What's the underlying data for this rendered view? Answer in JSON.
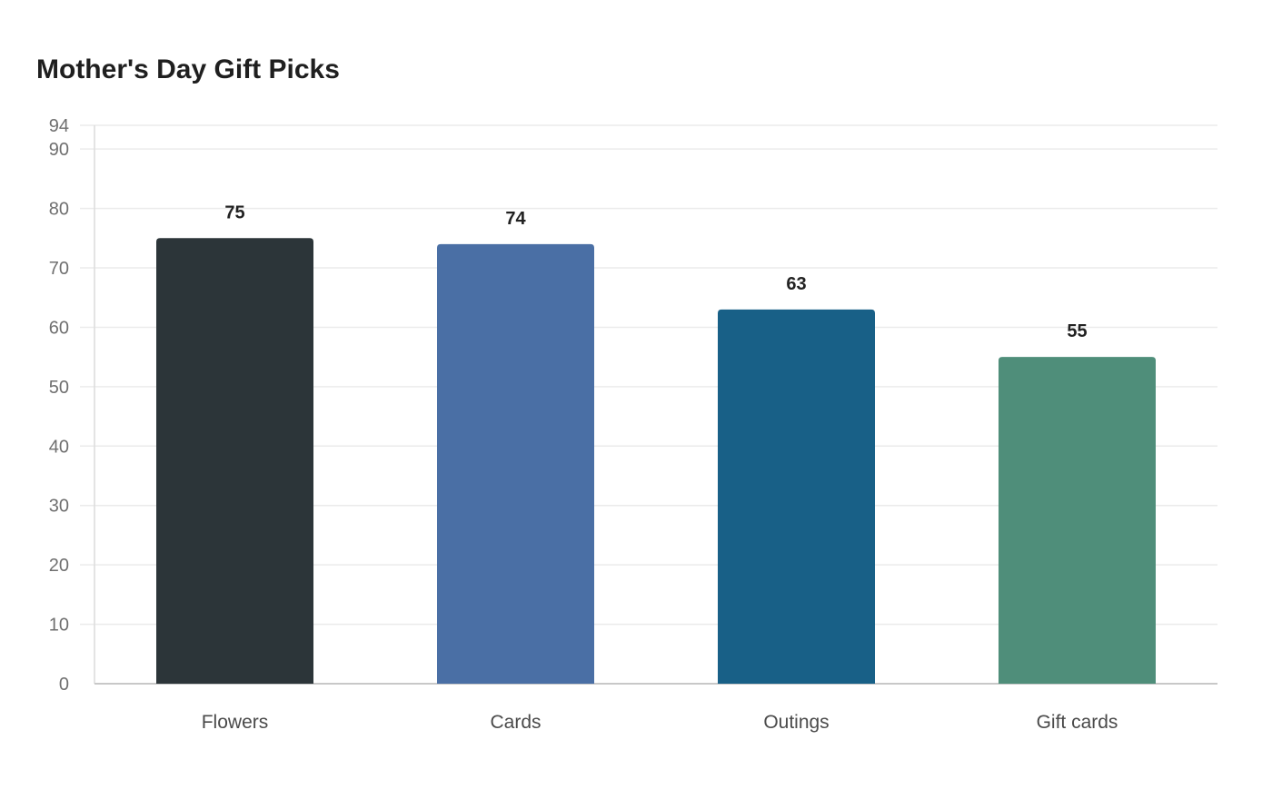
{
  "chart_data": {
    "type": "bar",
    "title": "Mother's Day Gift Picks",
    "categories": [
      "Flowers",
      "Cards",
      "Outings",
      "Gift cards"
    ],
    "values": [
      75,
      74,
      63,
      55
    ],
    "colors": [
      "#2c3539",
      "#4a6fa5",
      "#186087",
      "#4f8e7a"
    ],
    "xlabel": "",
    "ylabel": "",
    "ylim": [
      0,
      94
    ],
    "yticks": [
      0,
      10,
      20,
      30,
      40,
      50,
      60,
      70,
      80,
      90,
      94
    ],
    "grid": true,
    "legend": "none",
    "data_labels": true
  }
}
